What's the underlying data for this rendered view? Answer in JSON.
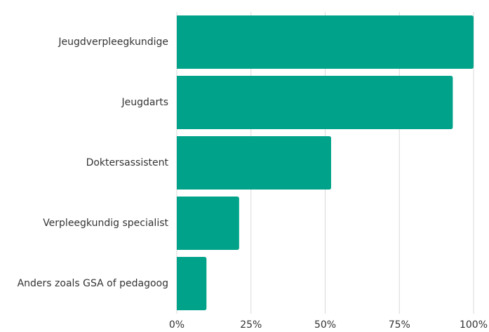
{
  "chart_data": {
    "type": "bar",
    "orientation": "horizontal",
    "categories": [
      "Jeugdverpleegkundige",
      "Jeugdarts",
      "Doktersassistent",
      "Verpleegkundig specialist",
      "Anders zoals GSA of pedagoog"
    ],
    "values": [
      100,
      93,
      52,
      21,
      10
    ],
    "color": "#00a389",
    "xlim": [
      0,
      100
    ],
    "xticks": [
      {
        "value": 0,
        "label": "0%"
      },
      {
        "value": 25,
        "label": "25%"
      },
      {
        "value": 50,
        "label": "50%"
      },
      {
        "value": 75,
        "label": "75%"
      },
      {
        "value": 100,
        "label": "100%"
      }
    ],
    "grid": true
  }
}
